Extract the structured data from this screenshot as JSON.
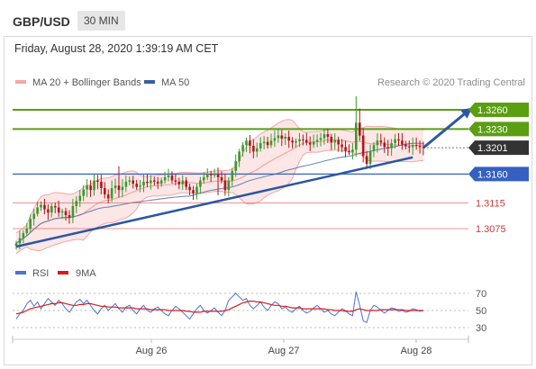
{
  "header": {
    "pair": "GBP/USD",
    "timeframe": "30 MIN",
    "timestamp": "Friday, August 28, 2020 1:39:19 AM CET"
  },
  "colors": {
    "resistance": "#5a9e12",
    "support": "#3461c1",
    "weak_level": "#e06666",
    "price": "#333333",
    "up_candle": "#3a9a2e",
    "down_candle": "#b11717",
    "bollinger": "#f4a6a6",
    "ma50": "#4a6fa5",
    "rsi": "#4a72d9",
    "ma9": "#d81b1b",
    "trend": "#2b56a6"
  },
  "legend": {
    "ma20_bb": "MA 20 + Bollinger Bands",
    "ma50": "MA 50",
    "credit": "Research © 2020 Trading Central",
    "rsi": "RSI",
    "ma9": "9MA"
  },
  "chart_data": [
    {
      "type": "candlestick",
      "levels": [
        {
          "value": 1.326,
          "label": "1.3260",
          "kind": "resistance"
        },
        {
          "value": 1.323,
          "label": "1.3230",
          "kind": "resistance"
        },
        {
          "value": 1.3201,
          "label": "1.3201",
          "kind": "price"
        },
        {
          "value": 1.316,
          "label": "1.3160",
          "kind": "support"
        },
        {
          "value": 1.3115,
          "label": "1.3115",
          "kind": "weak"
        },
        {
          "value": 1.3075,
          "label": "1.3075",
          "kind": "weak"
        }
      ],
      "x_tick_labels": [
        "Aug 26",
        "Aug 27",
        "Aug 28"
      ],
      "trendline": {
        "from": [
          0,
          1.3047
        ],
        "to": [
          112,
          1.3186
        ]
      },
      "target_arrow": {
        "from": [
          115,
          1.3201
        ],
        "to": [
          128,
          1.326
        ]
      },
      "closes": [
        1.3052,
        1.306,
        1.3068,
        1.3075,
        1.309,
        1.3098,
        1.3108,
        1.3112,
        1.3105,
        1.31,
        1.311,
        1.3108,
        1.31,
        1.3102,
        1.3096,
        1.3092,
        1.311,
        1.3118,
        1.3126,
        1.3136,
        1.3142,
        1.3135,
        1.315,
        1.3148,
        1.3138,
        1.3128,
        1.3122,
        1.3138,
        1.3142,
        1.3135,
        1.314,
        1.3148,
        1.315,
        1.3145,
        1.314,
        1.3142,
        1.3148,
        1.3146,
        1.315,
        1.3148,
        1.3145,
        1.315,
        1.3155,
        1.3158,
        1.315,
        1.3148,
        1.3144,
        1.315,
        1.314,
        1.3135,
        1.313,
        1.314,
        1.315,
        1.3155,
        1.316,
        1.3158,
        1.316,
        1.3155,
        1.315,
        1.3135,
        1.315,
        1.3165,
        1.318,
        1.3195,
        1.3205,
        1.3212,
        1.3204,
        1.3195,
        1.32,
        1.3208,
        1.321,
        1.3205,
        1.3212,
        1.3216,
        1.322,
        1.3215,
        1.3218,
        1.3212,
        1.3209,
        1.3211,
        1.3214,
        1.3213,
        1.3209,
        1.3206,
        1.321,
        1.3213,
        1.3216,
        1.3222,
        1.3218,
        1.3209,
        1.3213,
        1.3206,
        1.3202,
        1.3196,
        1.3194,
        1.3198,
        1.324,
        1.322,
        1.3188,
        1.3176,
        1.3196,
        1.3205,
        1.3212,
        1.3209,
        1.3202,
        1.32,
        1.3208,
        1.3214,
        1.3212,
        1.3206,
        1.3203,
        1.3202,
        1.3205,
        1.3204,
        1.3202,
        1.3201
      ],
      "price_range": [
        1.3035,
        1.329
      ]
    },
    {
      "type": "line",
      "name": "RSI",
      "y_ticks": [
        70,
        50,
        30
      ],
      "ylim": [
        20,
        80
      ],
      "series": [
        {
          "name": "RSI",
          "values": [
            40,
            46,
            50,
            58,
            62,
            55,
            60,
            52,
            58,
            64,
            60,
            56,
            62,
            58,
            52,
            48,
            54,
            60,
            63,
            58,
            62,
            56,
            50,
            46,
            52,
            56,
            50,
            54,
            58,
            52,
            48,
            54,
            56,
            50,
            46,
            52,
            56,
            50,
            48,
            52,
            54,
            50,
            46,
            44,
            50,
            55,
            52,
            48,
            44,
            40,
            46,
            52,
            56,
            50,
            47,
            50,
            53,
            48,
            44,
            50,
            62,
            66,
            70,
            66,
            62,
            64,
            56,
            52,
            56,
            60,
            54,
            50,
            56,
            60,
            58,
            52,
            54,
            50,
            48,
            52,
            55,
            50,
            47,
            49,
            53,
            56,
            52,
            48,
            50,
            46,
            44,
            48,
            52,
            50,
            46,
            44,
            72,
            56,
            38,
            36,
            50,
            56,
            54,
            50,
            47,
            50,
            53,
            52,
            49,
            50,
            48,
            49,
            52,
            51,
            49,
            50
          ]
        },
        {
          "name": "9MA",
          "values": [
            46,
            47,
            48,
            50,
            52,
            53,
            54,
            55,
            56,
            57,
            58,
            58,
            59,
            59,
            58,
            57,
            56,
            56,
            57,
            57,
            58,
            58,
            57,
            56,
            55,
            55,
            54,
            54,
            54,
            53,
            53,
            53,
            53,
            53,
            52,
            52,
            52,
            52,
            51,
            51,
            51,
            51,
            51,
            50,
            50,
            50,
            50,
            50,
            49,
            49,
            48,
            48,
            48,
            49,
            49,
            49,
            49,
            49,
            49,
            50,
            51,
            53,
            55,
            57,
            59,
            60,
            61,
            61,
            60,
            60,
            59,
            58,
            57,
            56,
            56,
            55,
            55,
            54,
            53,
            53,
            53,
            52,
            52,
            52,
            52,
            52,
            52,
            52,
            51,
            51,
            50,
            50,
            50,
            49,
            49,
            49,
            51,
            52,
            51,
            50,
            50,
            50,
            50,
            51,
            51,
            51,
            51,
            51,
            51,
            51,
            50,
            50,
            50,
            50,
            50,
            50
          ]
        }
      ]
    }
  ]
}
